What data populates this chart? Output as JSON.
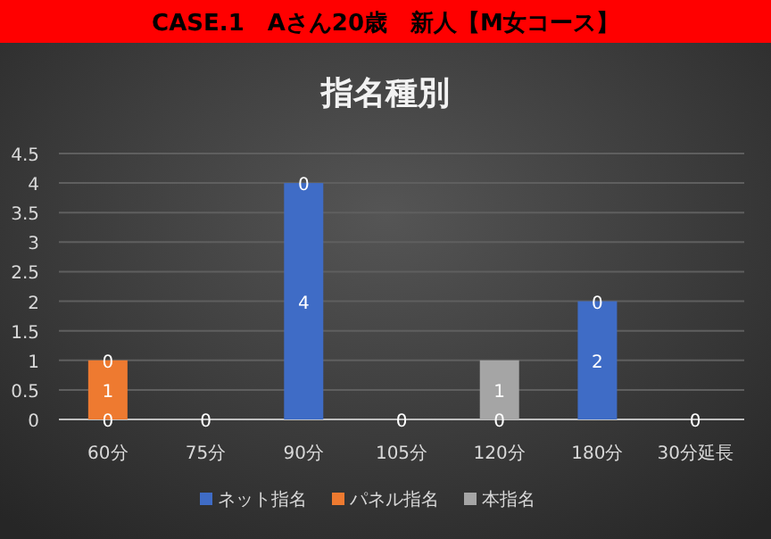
{
  "chart_data": {
    "type": "bar",
    "title": "CASE.1　Aさん20歳　新人【M女コース】",
    "subtitle": "指名種別",
    "categories": [
      "60分",
      "75分",
      "90分",
      "105分",
      "120分",
      "180分",
      "30分延長"
    ],
    "stacked": true,
    "series": [
      {
        "name": "ネット指名",
        "color": "#3f6cc6",
        "values": [
          0,
          0,
          4,
          0,
          0,
          2,
          0
        ],
        "value_labels": [
          "0",
          "0",
          "4",
          "0",
          "0",
          "2",
          "0"
        ]
      },
      {
        "name": "パネル指名",
        "color": "#ee7a30",
        "values": [
          1,
          0,
          0,
          0,
          0,
          0,
          0
        ],
        "value_labels": [
          "1",
          null,
          null,
          null,
          null,
          null,
          null
        ]
      },
      {
        "name": "本指名",
        "color": "#a5a5a5",
        "values": [
          0,
          0,
          0,
          0,
          1,
          0,
          0
        ],
        "value_labels": [
          "0",
          null,
          "0",
          null,
          "1",
          "0",
          null
        ]
      }
    ],
    "ylim": [
      0,
      4.5
    ],
    "yticks": [
      0,
      0.5,
      1,
      1.5,
      2,
      2.5,
      3,
      3.5,
      4,
      4.5
    ],
    "grid": "y",
    "legend": "bottom"
  }
}
